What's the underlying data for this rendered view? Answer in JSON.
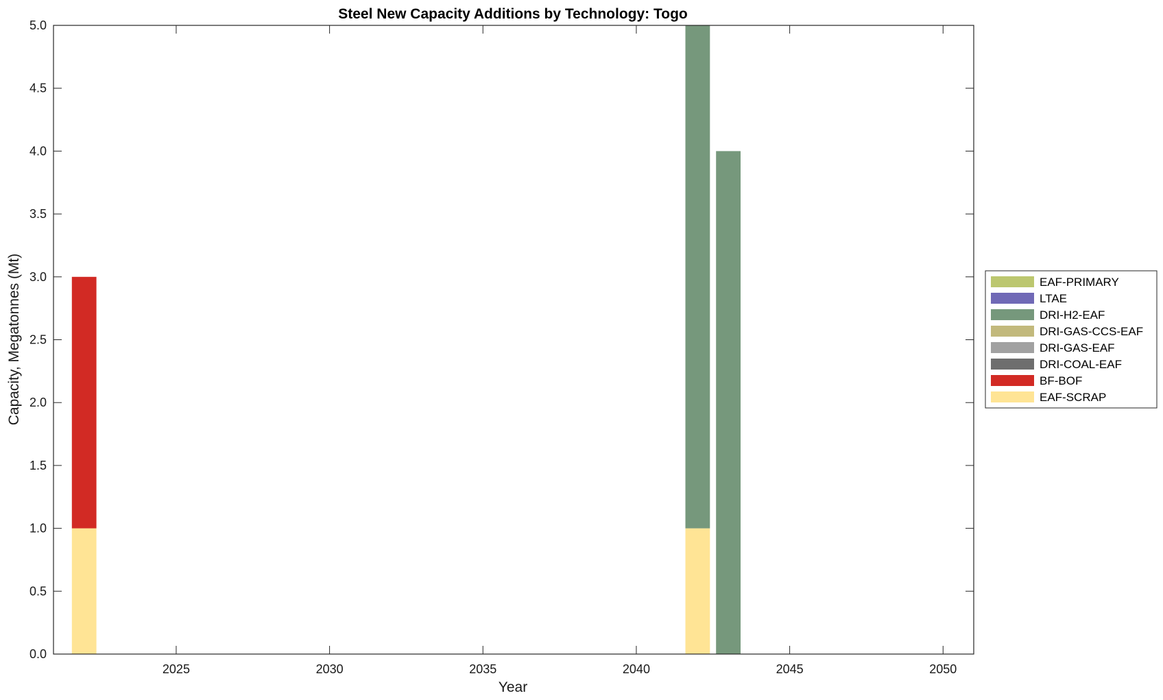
{
  "chart_data": {
    "type": "bar",
    "stacked": true,
    "title": "Steel New Capacity Additions by Technology: Togo",
    "xlabel": "Year",
    "ylabel": "Capacity, Megatonnes (Mt)",
    "xlim": [
      2021,
      2051
    ],
    "ylim": [
      0,
      5
    ],
    "xticks": [
      2025,
      2030,
      2035,
      2040,
      2045,
      2050
    ],
    "yticks": [
      0.0,
      0.5,
      1.0,
      1.5,
      2.0,
      2.5,
      3.0,
      3.5,
      4.0,
      4.5,
      5.0
    ],
    "ytick_labels": [
      "0.0",
      "0.5",
      "1.0",
      "1.5",
      "2.0",
      "2.5",
      "3.0",
      "3.5",
      "4.0",
      "4.5",
      "5.0"
    ],
    "grid": false,
    "legend_position": "outside-right",
    "bar_width_years": 0.8,
    "x": [
      2022,
      2042,
      2043
    ],
    "series": [
      {
        "name": "EAF-SCRAP",
        "color": "#FFE495",
        "values": [
          1,
          1,
          0
        ]
      },
      {
        "name": "BF-BOF",
        "color": "#D22A24",
        "values": [
          2,
          0,
          0
        ]
      },
      {
        "name": "DRI-COAL-EAF",
        "color": "#6E6E6E",
        "values": [
          0,
          0,
          0
        ]
      },
      {
        "name": "DRI-GAS-EAF",
        "color": "#A1A1A1",
        "values": [
          0,
          0,
          0
        ]
      },
      {
        "name": "DRI-GAS-CCS-EAF",
        "color": "#C2B97C",
        "values": [
          0,
          0,
          0
        ]
      },
      {
        "name": "DRI-H2-EAF",
        "color": "#76987C",
        "values": [
          0,
          4,
          4
        ]
      },
      {
        "name": "LTAE",
        "color": "#7069B6",
        "values": [
          0,
          0,
          0
        ]
      },
      {
        "name": "EAF-PRIMARY",
        "color": "#BCC76F",
        "values": [
          0,
          0,
          0
        ]
      }
    ],
    "legend_order": [
      "EAF-PRIMARY",
      "LTAE",
      "DRI-H2-EAF",
      "DRI-GAS-CCS-EAF",
      "DRI-GAS-EAF",
      "DRI-COAL-EAF",
      "BF-BOF",
      "EAF-SCRAP"
    ]
  }
}
